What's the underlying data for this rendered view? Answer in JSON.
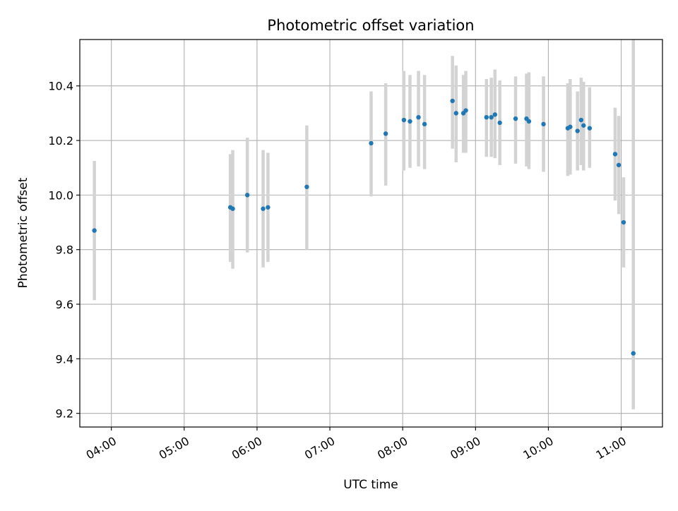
{
  "chart_data": {
    "type": "scatter",
    "title": "Photometric offset variation",
    "xlabel": "UTC time",
    "ylabel": "Photometric offset",
    "xlim": [
      "03:34",
      "11:34"
    ],
    "ylim": [
      9.15,
      10.57
    ],
    "x_ticks": [
      "04:00",
      "05:00",
      "06:00",
      "07:00",
      "08:00",
      "09:00",
      "10:00",
      "11:00"
    ],
    "y_ticks": [
      9.2,
      9.4,
      9.6,
      9.8,
      10.0,
      10.2,
      10.4
    ],
    "y_tick_labels": [
      "9.2",
      "9.4",
      "9.6",
      "9.8",
      "10.0",
      "10.2",
      "10.4"
    ],
    "grid": true,
    "series": [
      {
        "marker_color": "#1f77b4",
        "errorbar_color": "#d3d3d3",
        "points": [
          {
            "x": "03:46",
            "y": 9.87,
            "low": 9.615,
            "high": 10.125
          },
          {
            "x": "05:38",
            "y": 9.955,
            "low": 9.755,
            "high": 10.15
          },
          {
            "x": "05:40",
            "y": 9.95,
            "low": 9.73,
            "high": 10.165
          },
          {
            "x": "05:52",
            "y": 10.0,
            "low": 9.79,
            "high": 10.21
          },
          {
            "x": "06:05",
            "y": 9.95,
            "low": 9.735,
            "high": 10.165
          },
          {
            "x": "06:09",
            "y": 9.955,
            "low": 9.755,
            "high": 10.155
          },
          {
            "x": "06:41",
            "y": 10.03,
            "low": 9.8,
            "high": 10.255
          },
          {
            "x": "07:34",
            "y": 10.19,
            "low": 9.995,
            "high": 10.38
          },
          {
            "x": "07:46",
            "y": 10.225,
            "low": 10.035,
            "high": 10.41
          },
          {
            "x": "08:01",
            "y": 10.275,
            "low": 10.09,
            "high": 10.455
          },
          {
            "x": "08:06",
            "y": 10.27,
            "low": 10.1,
            "high": 10.44
          },
          {
            "x": "08:13",
            "y": 10.285,
            "low": 10.105,
            "high": 10.455
          },
          {
            "x": "08:18",
            "y": 10.26,
            "low": 10.095,
            "high": 10.44
          },
          {
            "x": "08:41",
            "y": 10.345,
            "low": 10.17,
            "high": 10.51
          },
          {
            "x": "08:44",
            "y": 10.3,
            "low": 10.12,
            "high": 10.475
          },
          {
            "x": "08:50",
            "y": 10.3,
            "low": 10.155,
            "high": 10.44
          },
          {
            "x": "08:52",
            "y": 10.31,
            "low": 10.155,
            "high": 10.455
          },
          {
            "x": "09:09",
            "y": 10.285,
            "low": 10.14,
            "high": 10.425
          },
          {
            "x": "09:13",
            "y": 10.285,
            "low": 10.14,
            "high": 10.43
          },
          {
            "x": "09:16",
            "y": 10.295,
            "low": 10.135,
            "high": 10.46
          },
          {
            "x": "09:20",
            "y": 10.265,
            "low": 10.11,
            "high": 10.42
          },
          {
            "x": "09:33",
            "y": 10.28,
            "low": 10.115,
            "high": 10.435
          },
          {
            "x": "09:42",
            "y": 10.28,
            "low": 10.105,
            "high": 10.445
          },
          {
            "x": "09:44",
            "y": 10.27,
            "low": 10.095,
            "high": 10.45
          },
          {
            "x": "09:56",
            "y": 10.26,
            "low": 10.085,
            "high": 10.435
          },
          {
            "x": "10:16",
            "y": 10.245,
            "low": 10.07,
            "high": 10.41
          },
          {
            "x": "10:18",
            "y": 10.25,
            "low": 10.075,
            "high": 10.425
          },
          {
            "x": "10:24",
            "y": 10.235,
            "low": 10.09,
            "high": 10.38
          },
          {
            "x": "10:27",
            "y": 10.275,
            "low": 10.11,
            "high": 10.43
          },
          {
            "x": "10:29",
            "y": 10.255,
            "low": 10.09,
            "high": 10.415
          },
          {
            "x": "10:34",
            "y": 10.245,
            "low": 10.1,
            "high": 10.395
          },
          {
            "x": "10:55",
            "y": 10.15,
            "low": 9.98,
            "high": 10.32
          },
          {
            "x": "10:58",
            "y": 10.11,
            "low": 9.93,
            "high": 10.29
          },
          {
            "x": "11:02",
            "y": 9.9,
            "low": 9.735,
            "high": 10.065
          },
          {
            "x": "11:10",
            "y": 9.42,
            "low": 9.215,
            "high": 10.625
          }
        ]
      }
    ]
  }
}
